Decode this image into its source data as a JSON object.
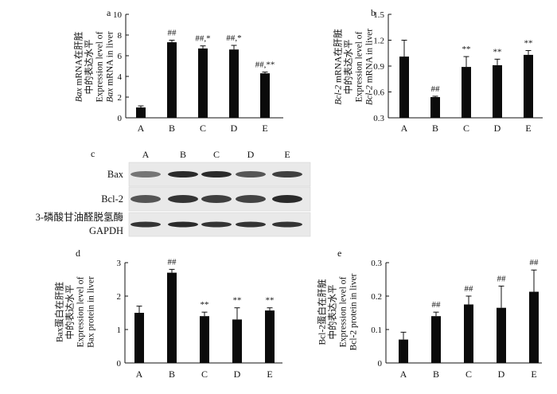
{
  "chart_data": [
    {
      "panel": "a",
      "type": "bar",
      "categories": [
        "A",
        "B",
        "C",
        "D",
        "E"
      ],
      "values": [
        1.0,
        7.3,
        6.7,
        6.6,
        4.3
      ],
      "errors": [
        0.15,
        0.2,
        0.25,
        0.4,
        0.12
      ],
      "annotations": [
        "",
        "##",
        "##,*",
        "##,*",
        "##,**"
      ],
      "ylabel_lines": [
        {
          "segments": [
            {
              "text": "Bax",
              "italic": true
            },
            {
              "text": " mRNA在肝脏",
              "italic": false
            }
          ]
        },
        {
          "segments": [
            {
              "text": "中的表达水平",
              "italic": false
            }
          ]
        },
        {
          "segments": [
            {
              "text": "Expression level of",
              "italic": false
            }
          ]
        },
        {
          "segments": [
            {
              "text": "Bax",
              "italic": true
            },
            {
              "text": " mRNA in liver",
              "italic": false
            }
          ]
        }
      ],
      "ylim": [
        0,
        10
      ],
      "yticks": [
        "0",
        "2",
        "4",
        "6",
        "8",
        "10"
      ]
    },
    {
      "panel": "b",
      "type": "bar",
      "categories": [
        "A",
        "B",
        "C",
        "D",
        "E"
      ],
      "values": [
        1.01,
        0.54,
        0.89,
        0.91,
        1.03
      ],
      "errors": [
        0.19,
        0.01,
        0.12,
        0.07,
        0.05
      ],
      "annotations": [
        "",
        "##",
        "**",
        "**",
        "**"
      ],
      "ylabel_lines": [
        {
          "segments": [
            {
              "text": "Bcl-2",
              "italic": true
            },
            {
              "text": " mRNA在肝脏",
              "italic": false
            }
          ]
        },
        {
          "segments": [
            {
              "text": "中的表达水平",
              "italic": false
            }
          ]
        },
        {
          "segments": [
            {
              "text": "Expression level of",
              "italic": false
            }
          ]
        },
        {
          "segments": [
            {
              "text": "Bcl-2",
              "italic": true
            },
            {
              "text": " mRNA in liver",
              "italic": false
            }
          ]
        }
      ],
      "ylim": [
        0.3,
        1.5
      ],
      "yticks": [
        "0.3",
        "0.6",
        "0.9",
        "1.2",
        "1.5"
      ]
    },
    {
      "panel": "d",
      "type": "bar",
      "categories": [
        "A",
        "B",
        "C",
        "D",
        "E"
      ],
      "values": [
        1.5,
        2.7,
        1.4,
        1.3,
        1.57
      ],
      "errors": [
        0.2,
        0.1,
        0.12,
        0.35,
        0.08
      ],
      "annotations": [
        "",
        "##",
        "**",
        "**",
        "**"
      ],
      "ylabel_lines": [
        {
          "segments": [
            {
              "text": "Bax蛋白在肝脏",
              "italic": false
            }
          ]
        },
        {
          "segments": [
            {
              "text": "中的表达水平",
              "italic": false
            }
          ]
        },
        {
          "segments": [
            {
              "text": "Expression level of",
              "italic": false
            }
          ]
        },
        {
          "segments": [
            {
              "text": "Bax protein in liver",
              "italic": false
            }
          ]
        }
      ],
      "ylim": [
        0,
        3
      ],
      "yticks": [
        "0",
        "1",
        "2",
        "3"
      ]
    },
    {
      "panel": "e",
      "type": "bar",
      "categories": [
        "A",
        "B",
        "C",
        "D",
        "E"
      ],
      "values": [
        0.07,
        0.14,
        0.175,
        0.165,
        0.213
      ],
      "errors": [
        0.022,
        0.012,
        0.025,
        0.065,
        0.065
      ],
      "annotations": [
        "",
        "##",
        "##",
        "##",
        "##"
      ],
      "ylabel_lines": [
        {
          "segments": [
            {
              "text": "Bcl-2蛋白在肝脏",
              "italic": false
            }
          ]
        },
        {
          "segments": [
            {
              "text": "中的表达水平",
              "italic": false
            }
          ]
        },
        {
          "segments": [
            {
              "text": "Expression level of",
              "italic": false
            }
          ]
        },
        {
          "segments": [
            {
              "text": "Bcl-2 protein in liver",
              "italic": false
            }
          ]
        }
      ],
      "ylim": [
        0,
        0.3
      ],
      "yticks": [
        "0",
        "0.1",
        "0.2",
        "0.3"
      ]
    }
  ],
  "blot": {
    "panel": "c",
    "lanes": [
      "A",
      "B",
      "C",
      "D",
      "E"
    ],
    "rows": [
      {
        "label": "Bax",
        "intensity": [
          0.55,
          0.9,
          0.9,
          0.7,
          0.8
        ]
      },
      {
        "label": "Bcl-2",
        "intensity": [
          0.7,
          0.85,
          0.8,
          0.78,
          0.9
        ]
      },
      {
        "label": "3-磷酸甘油醛脱氢酶",
        "label2": "GAPDH",
        "intensity": [
          0.85,
          0.9,
          0.85,
          0.85,
          0.85
        ]
      }
    ]
  }
}
